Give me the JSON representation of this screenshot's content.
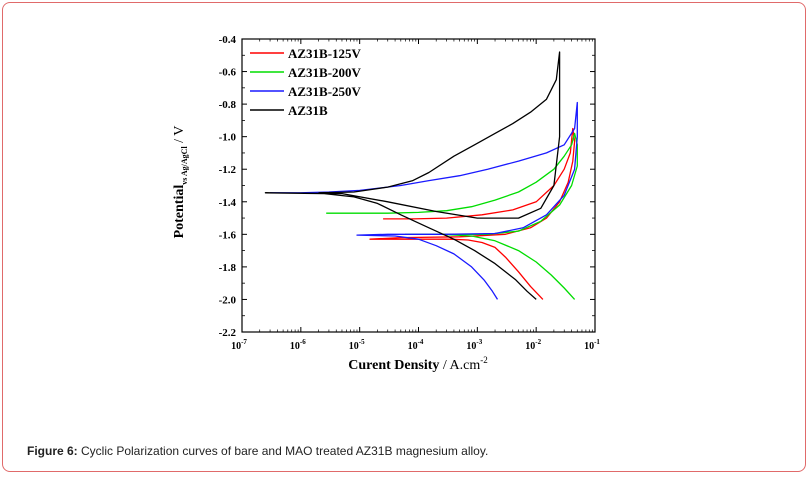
{
  "figure": {
    "caption_label": "Figure 6:",
    "caption_text": " Cyclic Polarization curves of bare and MAO treated AZ31B magnesium alloy."
  },
  "chart_data": {
    "type": "line",
    "xscale": "log",
    "xlim": [
      1e-07,
      0.1
    ],
    "ylim": [
      -2.2,
      -0.4
    ],
    "xlabel_main": "Curent Density",
    "xlabel_unit": " / A.cm",
    "xlabel_exp": "-2",
    "ylabel_main": "Potential",
    "ylabel_sub": "vs Ag/AgCl",
    "ylabel_unit": " / V",
    "x_tick_exponents": [
      -7,
      -6,
      -5,
      -4,
      -3,
      -2,
      -1
    ],
    "y_ticks": [
      "-0.4",
      "-0.6",
      "-0.8",
      "-1.0",
      "-1.2",
      "-1.4",
      "-1.6",
      "-1.8",
      "-2.0",
      "-2.2"
    ],
    "y_tick_values": [
      -0.4,
      -0.6,
      -0.8,
      -1.0,
      -1.2,
      -1.4,
      -1.6,
      -1.8,
      -2.0,
      -2.2
    ],
    "legend_position": "top-left",
    "series": [
      {
        "name": "AZ31B-125V",
        "color": "#ff0000",
        "points": [
          [
            0.013,
            -2.0
          ],
          [
            0.008,
            -1.92
          ],
          [
            0.005,
            -1.83
          ],
          [
            0.003,
            -1.74
          ],
          [
            0.002,
            -1.68
          ],
          [
            0.0012,
            -1.65
          ],
          [
            0.0007,
            -1.635
          ],
          [
            0.00035,
            -1.63
          ],
          [
            0.0001,
            -1.63
          ],
          [
            3e-05,
            -1.63
          ],
          [
            1.5e-05,
            -1.63
          ],
          [
            5e-05,
            -1.62
          ],
          [
            0.0005,
            -1.615
          ],
          [
            0.003,
            -1.6
          ],
          [
            0.008,
            -1.56
          ],
          [
            0.015,
            -1.5
          ],
          [
            0.025,
            -1.4
          ],
          [
            0.035,
            -1.28
          ],
          [
            0.042,
            -1.15
          ],
          [
            0.045,
            -1.03
          ],
          [
            0.042,
            -0.95
          ],
          [
            0.038,
            -1.1
          ],
          [
            0.03,
            -1.2
          ],
          [
            0.02,
            -1.3
          ],
          [
            0.01,
            -1.4
          ],
          [
            0.004,
            -1.45
          ],
          [
            0.0012,
            -1.48
          ],
          [
            0.0003,
            -1.5
          ],
          [
            8e-05,
            -1.505
          ],
          [
            2.5e-05,
            -1.505
          ]
        ]
      },
      {
        "name": "AZ31B-200V",
        "color": "#00dd00",
        "points": [
          [
            0.045,
            -2.0
          ],
          [
            0.03,
            -1.93
          ],
          [
            0.018,
            -1.85
          ],
          [
            0.01,
            -1.77
          ],
          [
            0.005,
            -1.7
          ],
          [
            0.002,
            -1.64
          ],
          [
            0.0008,
            -1.61
          ],
          [
            0.00025,
            -1.6
          ],
          [
            6e-05,
            -1.6
          ],
          [
            0.0002,
            -1.6
          ],
          [
            0.0015,
            -1.6
          ],
          [
            0.005,
            -1.58
          ],
          [
            0.012,
            -1.52
          ],
          [
            0.025,
            -1.42
          ],
          [
            0.04,
            -1.3
          ],
          [
            0.05,
            -1.18
          ],
          [
            0.05,
            -1.05
          ],
          [
            0.045,
            -0.98
          ],
          [
            0.04,
            -1.05
          ],
          [
            0.03,
            -1.12
          ],
          [
            0.02,
            -1.2
          ],
          [
            0.01,
            -1.28
          ],
          [
            0.005,
            -1.34
          ],
          [
            0.002,
            -1.39
          ],
          [
            0.0008,
            -1.43
          ],
          [
            0.0003,
            -1.455
          ],
          [
            0.0001,
            -1.465
          ],
          [
            3e-05,
            -1.47
          ],
          [
            2.7e-06,
            -1.47
          ]
        ]
      },
      {
        "name": "AZ31B-250V",
        "color": "#1a1aff",
        "points": [
          [
            0.0022,
            -2.0
          ],
          [
            0.0018,
            -1.95
          ],
          [
            0.0013,
            -1.88
          ],
          [
            0.0008,
            -1.8
          ],
          [
            0.0004,
            -1.72
          ],
          [
            0.0002,
            -1.67
          ],
          [
            0.0001,
            -1.63
          ],
          [
            4e-05,
            -1.61
          ],
          [
            9e-06,
            -1.605
          ],
          [
            3e-05,
            -1.6
          ],
          [
            0.0003,
            -1.6
          ],
          [
            0.002,
            -1.595
          ],
          [
            0.006,
            -1.56
          ],
          [
            0.015,
            -1.48
          ],
          [
            0.03,
            -1.36
          ],
          [
            0.045,
            -1.2
          ],
          [
            0.05,
            -1.0
          ],
          [
            0.05,
            -0.79
          ],
          [
            0.045,
            -0.95
          ],
          [
            0.03,
            -1.05
          ],
          [
            0.015,
            -1.1
          ],
          [
            0.005,
            -1.15
          ],
          [
            0.0015,
            -1.2
          ],
          [
            0.0005,
            -1.24
          ],
          [
            0.00015,
            -1.27
          ],
          [
            5e-05,
            -1.3
          ],
          [
            1e-05,
            -1.33
          ],
          [
            3e-06,
            -1.34
          ],
          [
            1e-06,
            -1.345
          ],
          [
            3e-07,
            -1.345
          ]
        ]
      },
      {
        "name": "AZ31B",
        "color": "#000000",
        "points": [
          [
            0.01,
            -2.0
          ],
          [
            0.007,
            -1.95
          ],
          [
            0.0045,
            -1.88
          ],
          [
            0.002,
            -1.78
          ],
          [
            0.0009,
            -1.7
          ],
          [
            0.0004,
            -1.63
          ],
          [
            0.00015,
            -1.56
          ],
          [
            5e-05,
            -1.48
          ],
          [
            2e-05,
            -1.41
          ],
          [
            8e-06,
            -1.37
          ],
          [
            2.5e-06,
            -1.35
          ],
          [
            2.5e-07,
            -1.345
          ],
          [
            5e-06,
            -1.35
          ],
          [
            3e-05,
            -1.4
          ],
          [
            0.0002,
            -1.46
          ],
          [
            0.001,
            -1.5
          ],
          [
            0.005,
            -1.5
          ],
          [
            0.012,
            -1.44
          ],
          [
            0.02,
            -1.3
          ],
          [
            0.025,
            -1.0
          ],
          [
            0.025,
            -0.48
          ],
          [
            0.022,
            -0.65
          ],
          [
            0.015,
            -0.77
          ],
          [
            0.008,
            -0.85
          ],
          [
            0.004,
            -0.92
          ],
          [
            0.002,
            -0.98
          ],
          [
            0.0009,
            -1.05
          ],
          [
            0.0004,
            -1.12
          ],
          [
            0.00015,
            -1.22
          ],
          [
            8e-05,
            -1.27
          ],
          [
            3e-05,
            -1.31
          ],
          [
            8e-06,
            -1.34
          ],
          [
            2e-06,
            -1.345
          ]
        ]
      }
    ]
  }
}
